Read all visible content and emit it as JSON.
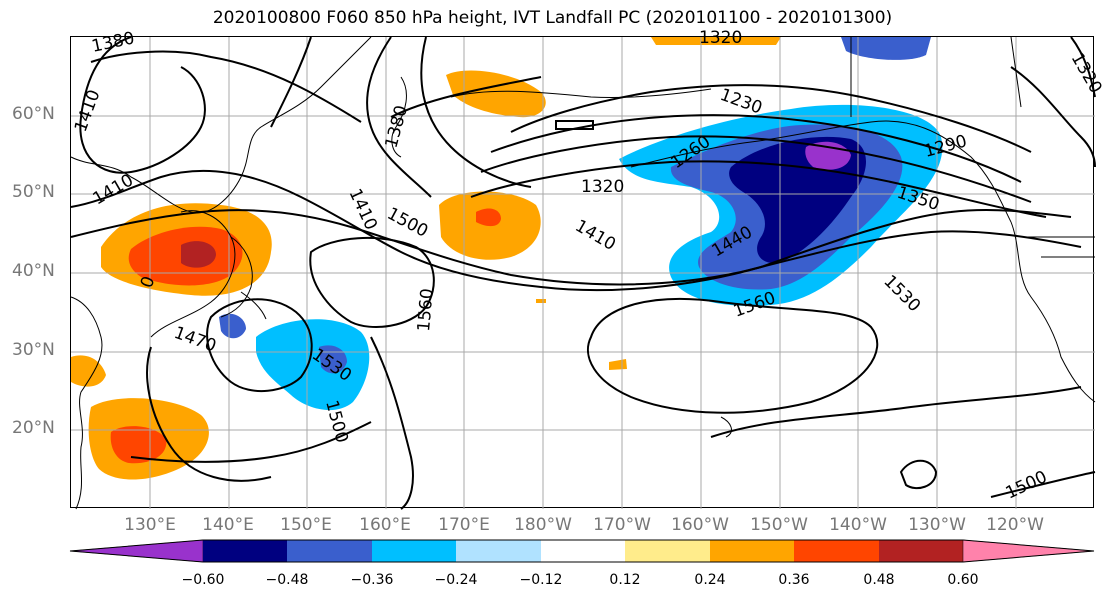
{
  "title": "2020100800 F060 850 hPa height, IVT Landfall PC (2020101100 - 2020101300)",
  "lat_labels": [
    "60°N",
    "50°N",
    "40°N",
    "30°N",
    "20°N"
  ],
  "lon_labels": [
    "130°E",
    "140°E",
    "150°E",
    "160°E",
    "170°E",
    "180°W",
    "170°W",
    "160°W",
    "150°W",
    "140°W",
    "130°W",
    "120°W"
  ],
  "contour_labels": [
    "1380",
    "1410",
    "1410",
    "1470",
    "1410",
    "1380",
    "1410",
    "1500",
    "1560",
    "1530",
    "1500",
    "1320",
    "1410",
    "1260",
    "1230",
    "1290",
    "1350",
    "1440",
    "1560",
    "1530",
    "1500",
    "1320",
    "1320",
    "0"
  ],
  "colorbar": {
    "ticks": [
      "−0.60",
      "−0.48",
      "−0.36",
      "−0.24",
      "−0.12",
      "0.12",
      "0.24",
      "0.36",
      "0.48",
      "0.60"
    ],
    "colors": [
      "#9932cc",
      "#000080",
      "#3a5fcd",
      "#00bfff",
      "#b0e2ff",
      "#ffffff",
      "#ffec8b",
      "#ffa500",
      "#ff4500",
      "#b22222",
      "#ff82ab"
    ]
  }
}
